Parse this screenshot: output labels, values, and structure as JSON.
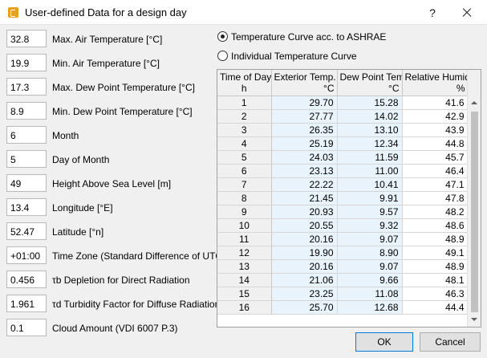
{
  "window": {
    "title": "User-defined Data for a design day",
    "help_label": "?"
  },
  "fields": [
    {
      "value": "32.8",
      "label": "Max. Air Temperature [°C]"
    },
    {
      "value": "19.9",
      "label": "Min. Air Temperature [°C]"
    },
    {
      "value": "17.3",
      "label": "Max. Dew Point Temperature [°C]"
    },
    {
      "value": "8.9",
      "label": "Min. Dew Point Temperature [°C]"
    },
    {
      "value": "6",
      "label": "Month"
    },
    {
      "value": "5",
      "label": "Day of Month"
    },
    {
      "value": "49",
      "label": "Height Above Sea Level [m]"
    },
    {
      "value": "13.4",
      "label": "Longitude [°E]"
    },
    {
      "value": "52.47",
      "label": "Latitude [°n]"
    },
    {
      "value": "+01:00",
      "label": "Time Zone (Standard Difference of UTC)"
    },
    {
      "value": "0.456",
      "label": "τb Depletion for Direct Radiation"
    },
    {
      "value": "1.961",
      "label": "τd Turbidity Factor for Diffuse Radiation"
    },
    {
      "value": "0.1",
      "label": "Cloud Amount (VDI 6007 P.3)"
    }
  ],
  "radios": {
    "ashrae": {
      "label": "Temperature Curve acc. to ASHRAE",
      "checked": true
    },
    "individual": {
      "label": "Individual Temperature Curve",
      "checked": false
    }
  },
  "grid": {
    "headers": [
      {
        "line1": "Time of Day",
        "line2": "h"
      },
      {
        "line1": "Exterior Temp.",
        "line2": "°C"
      },
      {
        "line1": "Dew Point Temp.",
        "line2": "°C"
      },
      {
        "line1": "Relative Humidity",
        "line2": "%"
      }
    ],
    "rows": [
      [
        "1",
        "29.70",
        "15.28",
        "41.6"
      ],
      [
        "2",
        "27.77",
        "14.02",
        "42.9"
      ],
      [
        "3",
        "26.35",
        "13.10",
        "43.9"
      ],
      [
        "4",
        "25.19",
        "12.34",
        "44.8"
      ],
      [
        "5",
        "24.03",
        "11.59",
        "45.7"
      ],
      [
        "6",
        "23.13",
        "11.00",
        "46.4"
      ],
      [
        "7",
        "22.22",
        "10.41",
        "47.1"
      ],
      [
        "8",
        "21.45",
        "9.91",
        "47.8"
      ],
      [
        "9",
        "20.93",
        "9.57",
        "48.2"
      ],
      [
        "10",
        "20.55",
        "9.32",
        "48.6"
      ],
      [
        "11",
        "20.16",
        "9.07",
        "48.9"
      ],
      [
        "12",
        "19.90",
        "8.90",
        "49.1"
      ],
      [
        "13",
        "20.16",
        "9.07",
        "48.9"
      ],
      [
        "14",
        "21.06",
        "9.66",
        "48.1"
      ],
      [
        "15",
        "23.25",
        "11.08",
        "46.3"
      ],
      [
        "16",
        "25.70",
        "12.68",
        "44.4"
      ]
    ]
  },
  "buttons": {
    "ok": "OK",
    "cancel": "Cancel"
  }
}
